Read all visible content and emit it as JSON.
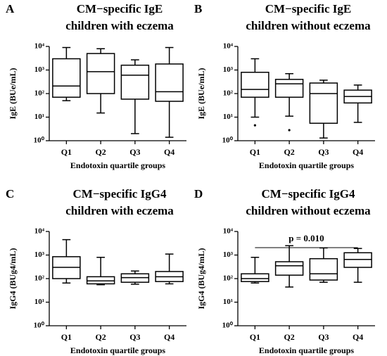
{
  "chart_data": [
    {
      "type": "box",
      "panel": "A",
      "title": [
        "CM−specific IgE",
        "children with eczema"
      ],
      "ylabel": "IgE (BUe/mL)",
      "xlabel": "Endotoxin quartile groups",
      "log": true,
      "color": "#000000",
      "categories": [
        "Q1",
        "Q2",
        "Q3",
        "Q4"
      ],
      "ylim": [
        1,
        10000
      ],
      "yticks": [
        {
          "value": 1,
          "label": "10⁰"
        },
        {
          "value": 10,
          "label": "10¹"
        },
        {
          "value": 100,
          "label": "10²"
        },
        {
          "value": 1000,
          "label": "10³"
        },
        {
          "value": 10000,
          "label": "10⁴"
        }
      ],
      "boxes": [
        {
          "whislo": 50,
          "q1": 70,
          "med": 210,
          "q3": 3000,
          "whishi": 9000
        },
        {
          "whislo": 15,
          "q1": 100,
          "med": 850,
          "q3": 5000,
          "whishi": 8000
        },
        {
          "whislo": 2,
          "q1": 58,
          "med": 600,
          "q3": 1600,
          "whishi": 2700
        },
        {
          "whislo": 1.4,
          "q1": 47,
          "med": 120,
          "q3": 1800,
          "whishi": 9000
        }
      ]
    },
    {
      "type": "box",
      "panel": "B",
      "title": [
        "CM−specific IgE",
        "children without eczema"
      ],
      "ylabel": "IgE (BUe/mL)",
      "xlabel": "Endotoxin quartile groups",
      "log": true,
      "color": "#000000",
      "categories": [
        "Q1",
        "Q2",
        "Q3",
        "Q4"
      ],
      "ylim": [
        1,
        10000
      ],
      "yticks": [
        {
          "value": 1,
          "label": "10⁰"
        },
        {
          "value": 10,
          "label": "10¹"
        },
        {
          "value": 100,
          "label": "10²"
        },
        {
          "value": 1000,
          "label": "10³"
        },
        {
          "value": 10000,
          "label": "10⁴"
        }
      ],
      "boxes": [
        {
          "whislo": 10,
          "q1": 70,
          "med": 150,
          "q3": 800,
          "whishi": 3000,
          "fliers": [
            4.5
          ]
        },
        {
          "whislo": 11,
          "q1": 70,
          "med": 260,
          "q3": 400,
          "whishi": 700,
          "fliers": [
            2.8
          ]
        },
        {
          "whislo": 1.3,
          "q1": 5.5,
          "med": 100,
          "q3": 280,
          "whishi": 370
        },
        {
          "whislo": 6,
          "q1": 40,
          "med": 75,
          "q3": 140,
          "whishi": 230
        }
      ]
    },
    {
      "type": "box",
      "panel": "C",
      "title": [
        "CM−specific IgG4",
        "children with eczema"
      ],
      "ylabel": "IgG4 (BUg4/mL)",
      "xlabel": "Endotoxin quartile groups",
      "log": true,
      "color": "#000000",
      "categories": [
        "Q1",
        "Q2",
        "Q3",
        "Q4"
      ],
      "ylim": [
        1,
        10000
      ],
      "yticks": [
        {
          "value": 1,
          "label": "10⁰"
        },
        {
          "value": 10,
          "label": "10¹"
        },
        {
          "value": 100,
          "label": "10²"
        },
        {
          "value": 1000,
          "label": "10³"
        },
        {
          "value": 10000,
          "label": "10⁴"
        }
      ],
      "boxes": [
        {
          "whislo": 65,
          "q1": 100,
          "med": 300,
          "q3": 850,
          "whishi": 4500
        },
        {
          "whislo": 55,
          "q1": 60,
          "med": 80,
          "q3": 120,
          "whishi": 800
        },
        {
          "whislo": 58,
          "q1": 70,
          "med": 110,
          "q3": 160,
          "whishi": 210
        },
        {
          "whislo": 60,
          "q1": 75,
          "med": 120,
          "q3": 200,
          "whishi": 1100
        }
      ]
    },
    {
      "type": "box",
      "panel": "D",
      "title": [
        "CM−specific IgG4",
        "children without eczema"
      ],
      "ylabel": "IgG4 (BUg4/mL)",
      "xlabel": "Endotoxin quartile groups",
      "log": true,
      "color": "#000000",
      "annotation": "p = 0.010",
      "categories": [
        "Q1",
        "Q2",
        "Q3",
        "Q4"
      ],
      "ylim": [
        1,
        10000
      ],
      "yticks": [
        {
          "value": 1,
          "label": "10⁰"
        },
        {
          "value": 10,
          "label": "10¹"
        },
        {
          "value": 100,
          "label": "10²"
        },
        {
          "value": 1000,
          "label": "10³"
        },
        {
          "value": 10000,
          "label": "10⁴"
        }
      ],
      "boxes": [
        {
          "whislo": 65,
          "q1": 75,
          "med": 100,
          "q3": 160,
          "whishi": 800
        },
        {
          "whislo": 44,
          "q1": 140,
          "med": 350,
          "q3": 520,
          "whishi": 2500
        },
        {
          "whislo": 70,
          "q1": 87,
          "med": 160,
          "q3": 700,
          "whishi": 2000
        },
        {
          "whislo": 70,
          "q1": 300,
          "med": 650,
          "q3": 1250,
          "whishi": 1900
        }
      ]
    }
  ]
}
